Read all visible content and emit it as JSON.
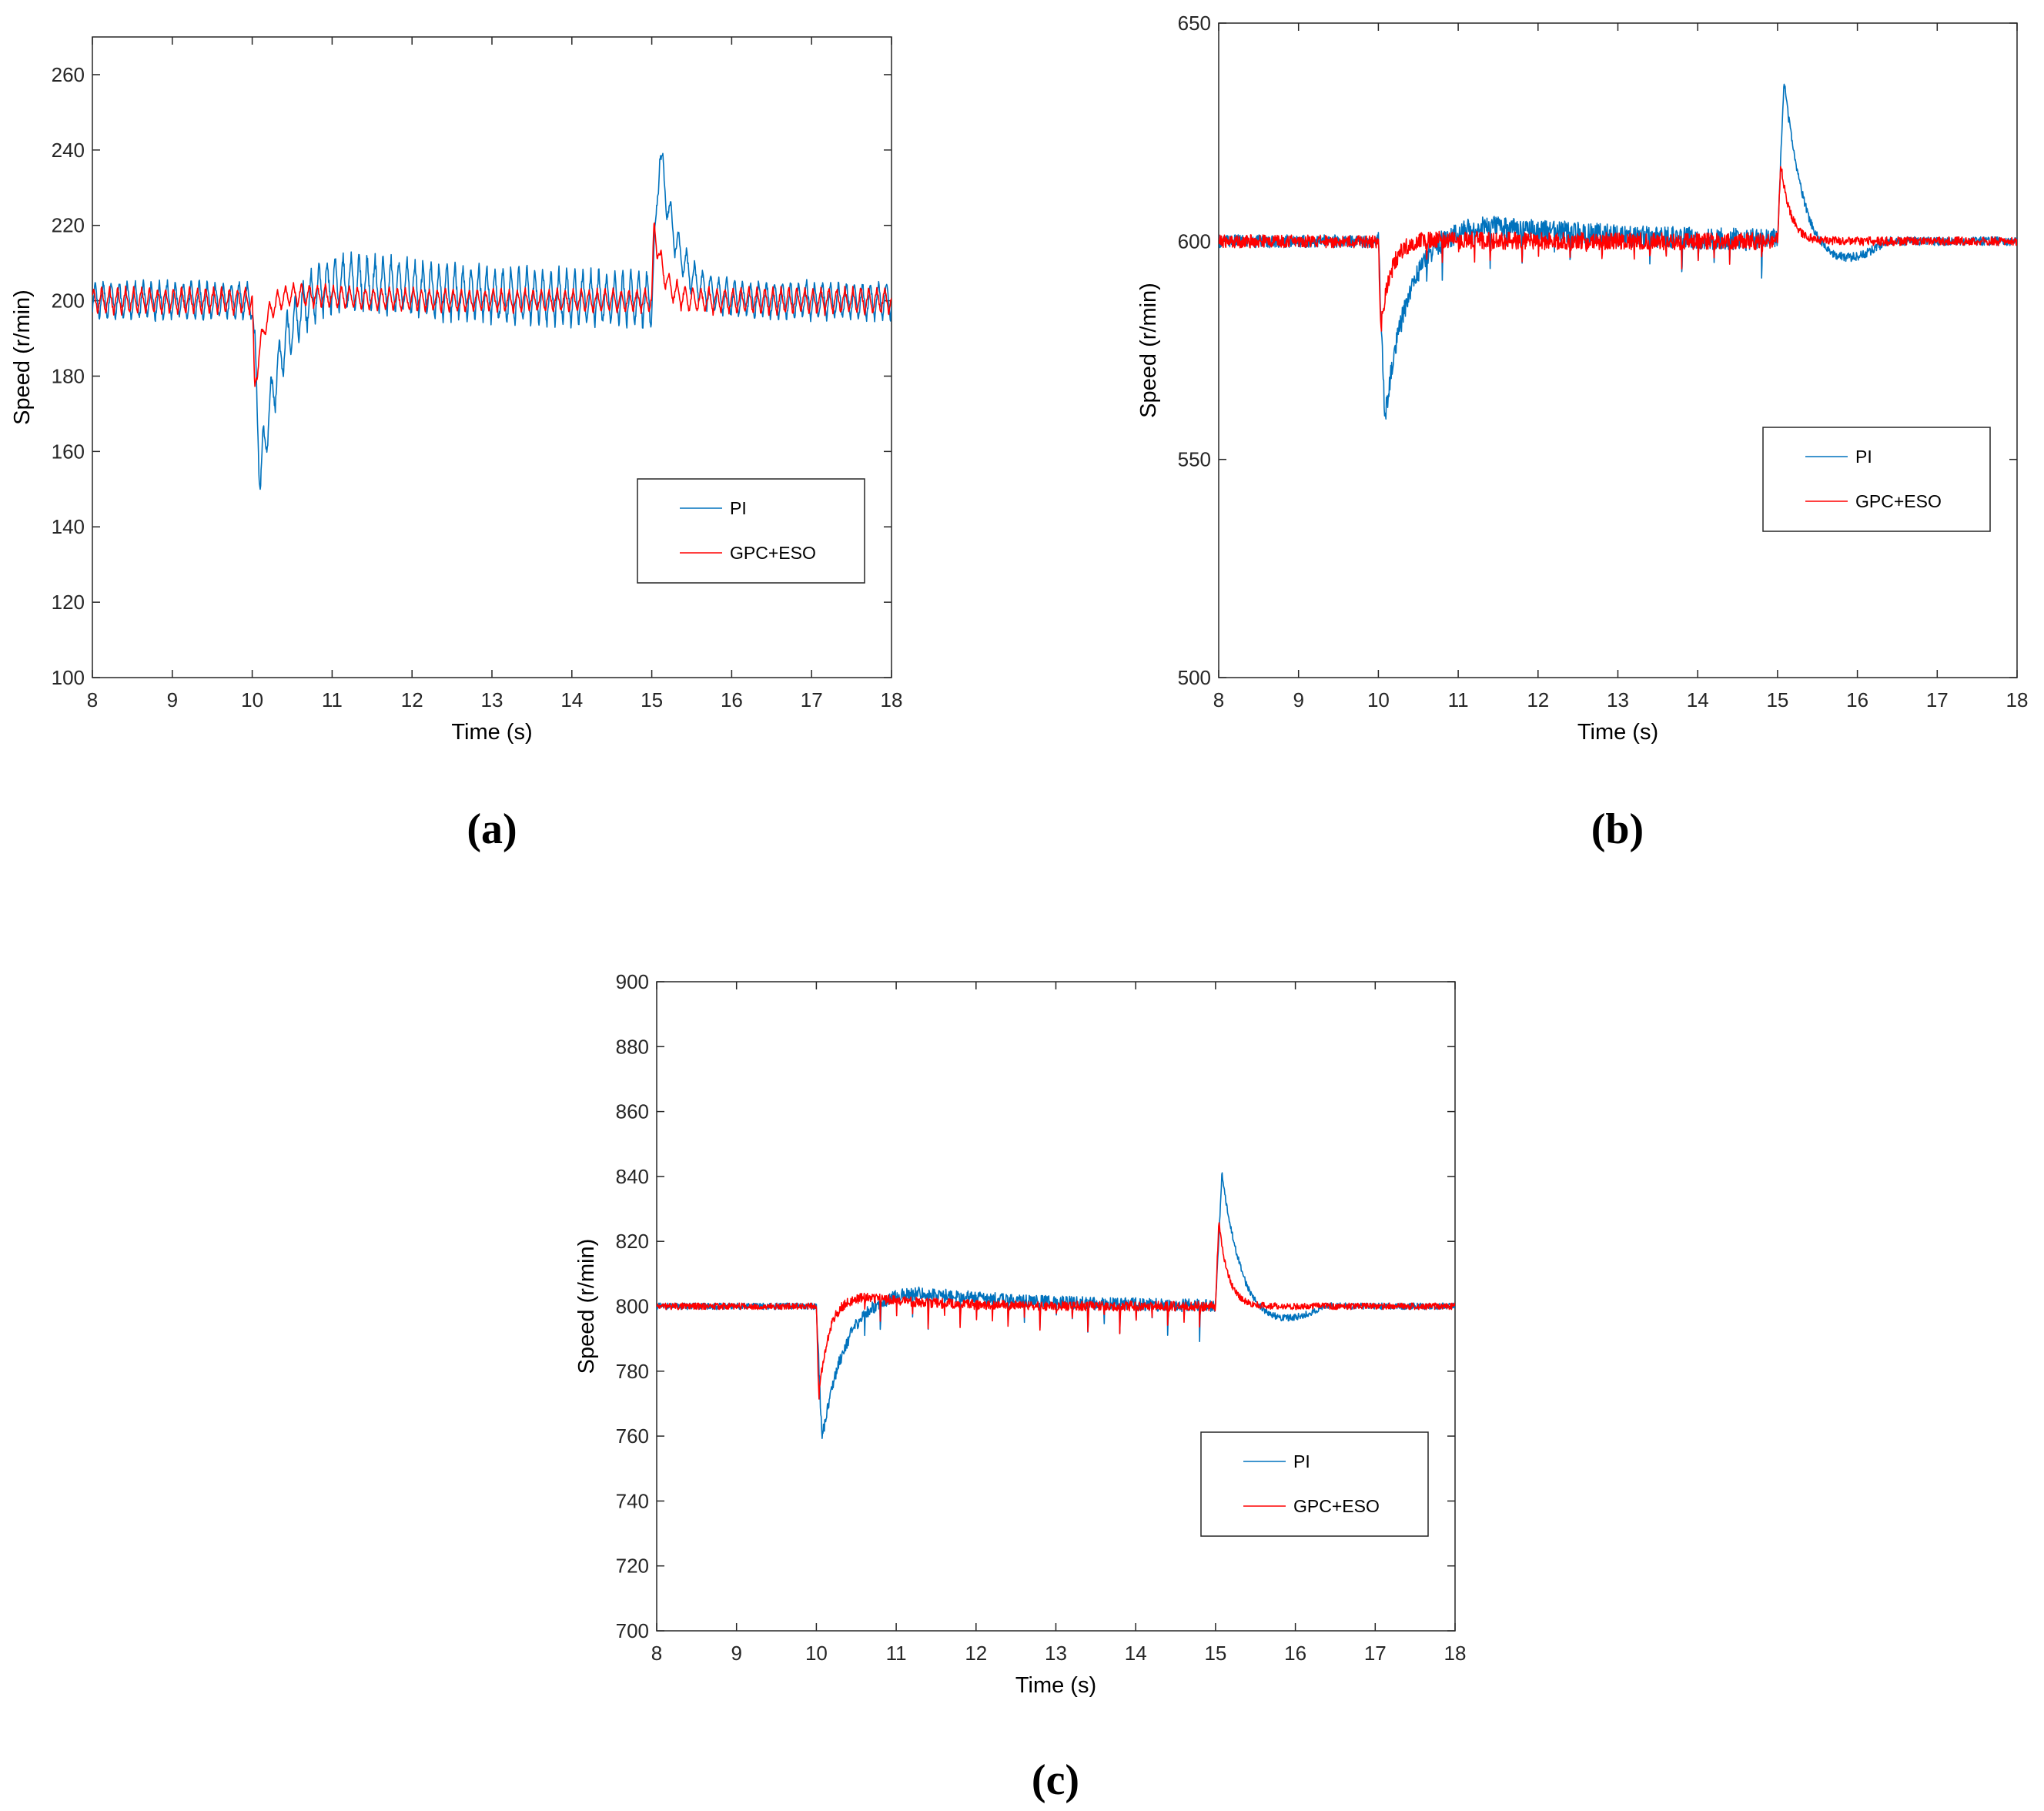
{
  "colors": {
    "pi": "#0072BD",
    "gpc": "#FF0000",
    "axis": "#262626",
    "legend_border": "#262626"
  },
  "chart_data": [
    {
      "panel": "a",
      "caption": "(a)",
      "type": "line",
      "xlabel": "Time (s)",
      "ylabel": "Speed (r/min)",
      "xlim": [
        8,
        18
      ],
      "ylim": [
        100,
        270
      ],
      "xticks": [
        "8",
        "9",
        "10",
        "11",
        "12",
        "13",
        "14",
        "15",
        "16",
        "17",
        "18"
      ],
      "yticks": [
        "100",
        "120",
        "140",
        "160",
        "180",
        "200",
        "220",
        "240",
        "260"
      ],
      "legend_position": "lower-right",
      "series": [
        {
          "name": "PI",
          "color_key": "pi",
          "setpoint": 200,
          "ripple_before": 6,
          "ripple_load": 9,
          "ripple_after": 6,
          "ripple_period": 0.1,
          "load_on_time": 10,
          "dip_min": 153,
          "dip_time": 10.1,
          "recovery_tau": 0.3,
          "overshoot_above_ss": 7,
          "overshoot_time": 11.0,
          "settle_tau": 1.4,
          "load_off_time": 15,
          "peak_max": 240,
          "peak_time": 15.1,
          "decay_tau": 0.22,
          "undershoot": 0,
          "spikes": false
        },
        {
          "name": "GPC+ESO",
          "color_key": "gpc",
          "setpoint": 200,
          "ripple_before": 4,
          "ripple_load": 3.5,
          "ripple_after": 4,
          "ripple_period": 0.1,
          "load_on_time": 10,
          "dip_min": 176,
          "dip_time": 10.03,
          "recovery_tau": 0.12,
          "overshoot_above_ss": 2,
          "overshoot_time": 10.5,
          "settle_tau": 0.8,
          "load_off_time": 15,
          "peak_max": 220,
          "peak_time": 15.03,
          "decay_tau": 0.12,
          "undershoot": 0,
          "spikes": false
        }
      ]
    },
    {
      "panel": "b",
      "caption": "(b)",
      "type": "line",
      "xlabel": "Time (s)",
      "ylabel": "Speed (r/min)",
      "xlim": [
        8,
        18
      ],
      "ylim": [
        500,
        650
      ],
      "xticks": [
        "8",
        "9",
        "10",
        "11",
        "12",
        "13",
        "14",
        "15",
        "16",
        "17",
        "18"
      ],
      "yticks": [
        "500",
        "550",
        "600",
        "650"
      ],
      "legend_position": "upper-right",
      "series": [
        {
          "name": "PI",
          "color_key": "pi",
          "setpoint": 600,
          "ripple_before": 1.5,
          "ripple_load": 2.5,
          "ripple_after": 1,
          "ripple_period": 0.05,
          "load_on_time": 10,
          "dip_min": 559,
          "dip_time": 10.08,
          "recovery_tau": 0.3,
          "overshoot_above_ss": 4,
          "overshoot_time": 11.4,
          "settle_tau": 1.5,
          "load_off_time": 15,
          "peak_max": 637,
          "peak_time": 15.08,
          "decay_tau": 0.22,
          "undershoot": 5,
          "spikes": true,
          "spike_depth": 8
        },
        {
          "name": "GPC+ESO",
          "color_key": "gpc",
          "setpoint": 600,
          "ripple_before": 1.5,
          "ripple_load": 2,
          "ripple_after": 1,
          "ripple_period": 0.05,
          "load_on_time": 10,
          "dip_min": 580,
          "dip_time": 10.03,
          "recovery_tau": 0.13,
          "overshoot_above_ss": 0.5,
          "overshoot_time": 10.6,
          "settle_tau": 0.8,
          "load_off_time": 15,
          "peak_max": 618,
          "peak_time": 15.04,
          "decay_tau": 0.12,
          "undershoot": 0,
          "spikes": true,
          "spike_depth": 6
        }
      ]
    },
    {
      "panel": "c",
      "caption": "(c)",
      "type": "line",
      "xlabel": "Time (s)",
      "ylabel": "Speed (r/min)",
      "xlim": [
        8,
        18
      ],
      "ylim": [
        700,
        900
      ],
      "xticks": [
        "8",
        "9",
        "10",
        "11",
        "12",
        "13",
        "14",
        "15",
        "16",
        "17",
        "18"
      ],
      "yticks": [
        "700",
        "720",
        "740",
        "760",
        "780",
        "800",
        "820",
        "840",
        "860",
        "880",
        "900"
      ],
      "legend_position": "lower-right",
      "series": [
        {
          "name": "PI",
          "color_key": "pi",
          "setpoint": 800,
          "ripple_before": 1,
          "ripple_load": 2,
          "ripple_after": 1,
          "ripple_period": 0.05,
          "load_on_time": 10,
          "dip_min": 759,
          "dip_time": 10.07,
          "recovery_tau": 0.3,
          "overshoot_above_ss": 5,
          "overshoot_time": 11.2,
          "settle_tau": 1.3,
          "load_off_time": 15,
          "peak_max": 841,
          "peak_time": 15.08,
          "decay_tau": 0.22,
          "undershoot": 5,
          "spikes": true,
          "spike_depth": 11
        },
        {
          "name": "GPC+ESO",
          "color_key": "gpc",
          "setpoint": 800,
          "ripple_before": 1,
          "ripple_load": 1.5,
          "ripple_after": 1,
          "ripple_period": 0.05,
          "load_on_time": 10,
          "dip_min": 772,
          "dip_time": 10.03,
          "recovery_tau": 0.13,
          "overshoot_above_ss": 3,
          "overshoot_time": 10.6,
          "settle_tau": 0.8,
          "load_off_time": 15,
          "peak_max": 826,
          "peak_time": 15.04,
          "decay_tau": 0.12,
          "undershoot": 0,
          "spikes": true,
          "spike_depth": 9
        }
      ]
    }
  ]
}
